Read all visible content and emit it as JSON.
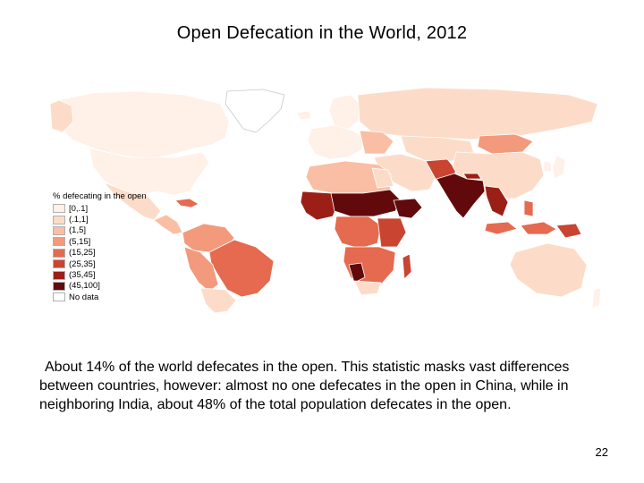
{
  "slide": {
    "title": "Open Defecation in the World, 2012",
    "caption": "About 14% of the world defecates in the open. This statistic masks vast differences between countries, however: almost no one defecates in the open in China, while in neighboring India, about 48% of the total population defecates in the open.",
    "page_number": "22"
  },
  "map": {
    "legend_title": "% defecating in the open",
    "legend_items": [
      {
        "label": "[0,.1]",
        "color": "#fff0e8"
      },
      {
        "label": "(.1,1]",
        "color": "#fcdcc9"
      },
      {
        "label": "(1,5]",
        "color": "#f9bea4"
      },
      {
        "label": "(5,15]",
        "color": "#f39a7c"
      },
      {
        "label": "(15,25]",
        "color": "#e56a4f"
      },
      {
        "label": "(25,35]",
        "color": "#c94431"
      },
      {
        "label": "(35,45]",
        "color": "#9b1f16"
      },
      {
        "label": "(45,100]",
        "color": "#62090c"
      },
      {
        "label": "No data",
        "color": "#ffffff"
      }
    ]
  }
}
